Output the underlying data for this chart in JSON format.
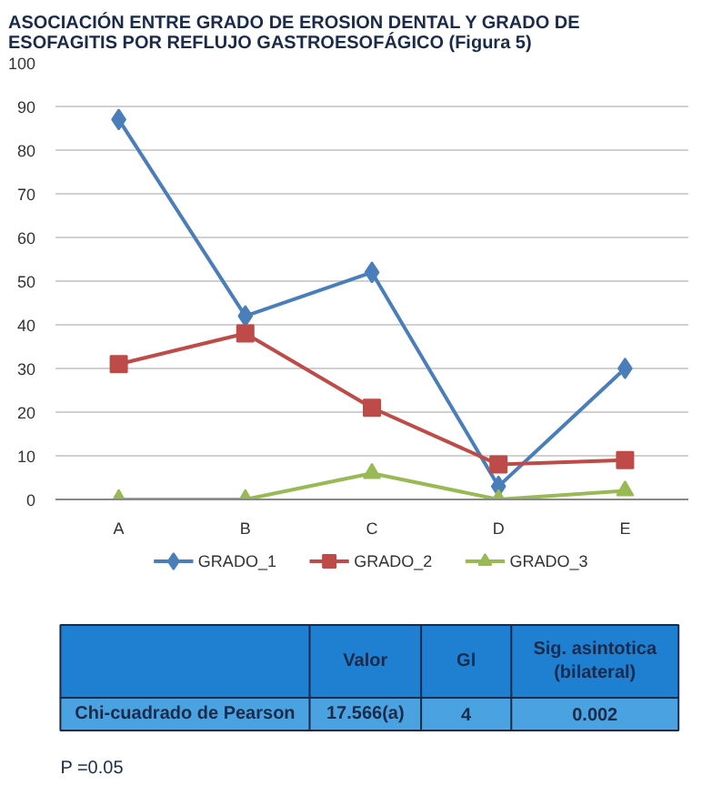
{
  "chart_data": {
    "type": "line",
    "title": "ASOCIACIÓN ENTRE GRADO DE EROSION DENTAL Y GRADO DE\nESOFAGITIS POR REFLUJO GASTROESOFÁGICO (Figura 5)",
    "categories": [
      "A",
      "B",
      "C",
      "D",
      "E"
    ],
    "series": [
      {
        "name": "GRADO_1",
        "color": "#4a7ebb",
        "marker": "diamond",
        "values": [
          87,
          42,
          52,
          3,
          30
        ]
      },
      {
        "name": "GRADO_2",
        "color": "#be4b48",
        "marker": "square",
        "values": [
          31,
          38,
          21,
          8,
          9
        ]
      },
      {
        "name": "GRADO_3",
        "color": "#98b954",
        "marker": "triangle",
        "values": [
          0,
          0,
          6,
          0,
          2
        ]
      }
    ],
    "ylim": [
      0,
      100
    ],
    "yticks": [
      0,
      10,
      20,
      30,
      40,
      50,
      60,
      70,
      80,
      90,
      100
    ],
    "grid": "y",
    "legend": "bottom",
    "annotations": [
      "Valor",
      "Gl",
      "Sig. asintotica (bilateral)",
      "Chi-cuadrado de Pearson",
      "17.566(a)",
      "4",
      "0.002",
      "P =0.05"
    ]
  }
}
